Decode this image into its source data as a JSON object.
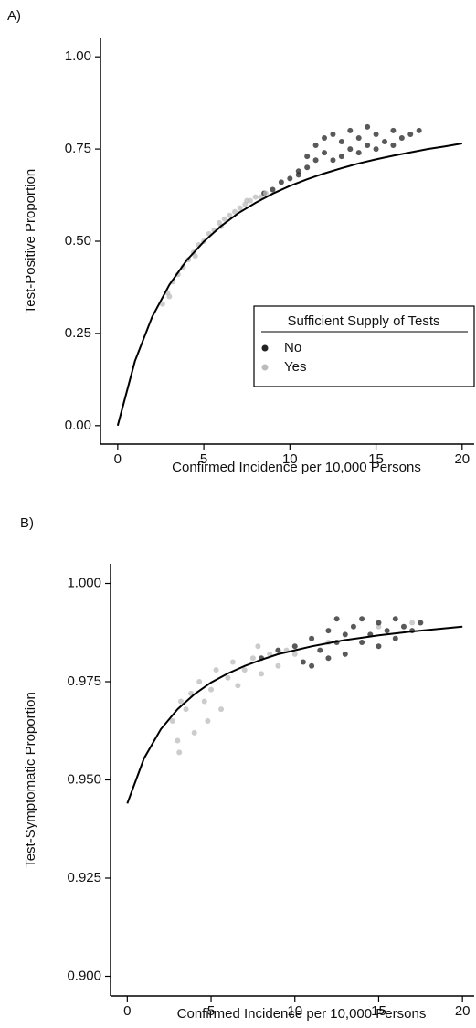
{
  "chart_data": [
    {
      "type": "scatter",
      "label": "A)",
      "x_label": "Confirmed Incidence per 10,000 Persons",
      "y_label": "Test-Positive Proportion",
      "xlim": [
        -1,
        20.7
      ],
      "ylim": [
        -0.05,
        1.05
      ],
      "xticks": [
        0,
        5,
        10,
        15,
        20
      ],
      "yticks": [
        {
          "value": 0,
          "label": "0.00"
        },
        0.25,
        {
          "value": 0.5,
          "label": "0.50"
        },
        0.75,
        {
          "value": 1,
          "label": "1.00"
        }
      ],
      "legend": {
        "title": "Sufficient Supply of Tests",
        "corner": "right"
      },
      "series": [
        {
          "name": "No",
          "color": "#222222",
          "x": [
            8.5,
            9.0,
            9.5,
            10.0,
            10.5,
            11.0,
            11.5,
            11.5,
            12.0,
            12.0,
            12.5,
            12.5,
            13.0,
            13.0,
            13.5,
            13.5,
            14.0,
            14.0,
            14.5,
            15.0,
            15.0,
            15.5,
            16.0,
            16.0,
            16.5,
            17.0,
            17.5,
            11.0,
            10.5,
            14.5
          ],
          "values": [
            0.63,
            0.64,
            0.66,
            0.67,
            0.69,
            0.7,
            0.72,
            0.76,
            0.74,
            0.78,
            0.72,
            0.79,
            0.73,
            0.77,
            0.75,
            0.8,
            0.74,
            0.78,
            0.76,
            0.75,
            0.79,
            0.77,
            0.76,
            0.8,
            0.78,
            0.79,
            0.8,
            0.73,
            0.68,
            0.81
          ]
        },
        {
          "name": "Yes",
          "color": "#bbbbbb",
          "x": [
            2.6,
            2.9,
            3.2,
            3.5,
            3.8,
            4.1,
            4.4,
            4.7,
            5.0,
            5.3,
            5.6,
            5.9,
            6.2,
            6.5,
            6.8,
            7.1,
            7.4,
            7.7,
            8.0,
            8.3,
            8.6,
            3.0,
            4.5,
            6.0,
            7.5
          ],
          "values": [
            0.33,
            0.36,
            0.39,
            0.41,
            0.43,
            0.45,
            0.47,
            0.49,
            0.5,
            0.52,
            0.53,
            0.55,
            0.56,
            0.57,
            0.58,
            0.59,
            0.6,
            0.61,
            0.62,
            0.62,
            0.63,
            0.35,
            0.46,
            0.54,
            0.61
          ]
        }
      ],
      "curve": {
        "color": "#000000",
        "x": [
          0,
          1,
          2,
          3,
          4,
          5,
          6,
          7,
          8,
          9,
          10,
          11,
          12,
          13,
          14,
          15,
          16,
          17,
          18,
          19,
          20
        ],
        "values": [
          0,
          0.175,
          0.295,
          0.382,
          0.448,
          0.499,
          0.541,
          0.576,
          0.604,
          0.629,
          0.65,
          0.668,
          0.684,
          0.698,
          0.711,
          0.722,
          0.732,
          0.741,
          0.75,
          0.757,
          0.765
        ]
      }
    },
    {
      "type": "scatter",
      "label": "B)",
      "x_label": "Confirmed Incidence per 10,000 Persons",
      "y_label": "Test-Symptomatic Proportion",
      "xlim": [
        -1,
        20.7
      ],
      "ylim": [
        0.895,
        1.005
      ],
      "xticks": [
        0,
        5,
        10,
        15,
        20
      ],
      "yticks": [
        {
          "value": 0.9,
          "label": "0.900"
        },
        0.925,
        {
          "value": 0.95,
          "label": "0.950"
        },
        0.975,
        {
          "value": 1,
          "label": "1.000"
        }
      ],
      "series": [
        {
          "color": "#bbbbbb",
          "x": [
            2.7,
            3.0,
            3.2,
            3.5,
            3.8,
            4.0,
            4.3,
            4.6,
            5.0,
            5.3,
            5.6,
            6.0,
            6.3,
            6.6,
            7.0,
            7.5,
            8.0,
            8.5,
            9.0,
            9.5,
            3.1,
            4.8,
            7.8,
            10.0,
            12.0,
            15.0,
            17.0
          ],
          "values": [
            0.965,
            0.96,
            0.97,
            0.968,
            0.972,
            0.962,
            0.975,
            0.97,
            0.973,
            0.978,
            0.968,
            0.976,
            0.98,
            0.974,
            0.978,
            0.981,
            0.977,
            0.982,
            0.979,
            0.983,
            0.957,
            0.965,
            0.984,
            0.982,
            0.985,
            0.989,
            0.99
          ]
        },
        {
          "color": "#222222",
          "x": [
            8.0,
            9.0,
            10.0,
            10.5,
            11.0,
            11.5,
            12.0,
            12.5,
            12.5,
            13.0,
            13.0,
            13.5,
            14.0,
            14.0,
            14.5,
            15.0,
            15.0,
            15.5,
            16.0,
            16.0,
            16.5,
            17.0,
            17.5,
            11.0,
            12.0
          ],
          "values": [
            0.981,
            0.983,
            0.984,
            0.98,
            0.986,
            0.983,
            0.988,
            0.985,
            0.991,
            0.982,
            0.987,
            0.989,
            0.985,
            0.991,
            0.987,
            0.984,
            0.99,
            0.988,
            0.986,
            0.991,
            0.989,
            0.988,
            0.99,
            0.979,
            0.981
          ]
        }
      ],
      "curve": {
        "color": "#000000",
        "x": [
          0,
          1,
          2,
          3,
          4,
          5,
          6,
          7,
          8,
          9,
          10,
          11,
          12,
          13,
          14,
          15,
          16,
          17,
          18,
          19,
          20
        ],
        "values": [
          0.944,
          0.9555,
          0.9629,
          0.968,
          0.9718,
          0.9748,
          0.9771,
          0.979,
          0.9806,
          0.982,
          0.983,
          0.984,
          0.9848,
          0.9856,
          0.9862,
          0.9868,
          0.9873,
          0.9878,
          0.9882,
          0.9886,
          0.989
        ]
      }
    }
  ]
}
